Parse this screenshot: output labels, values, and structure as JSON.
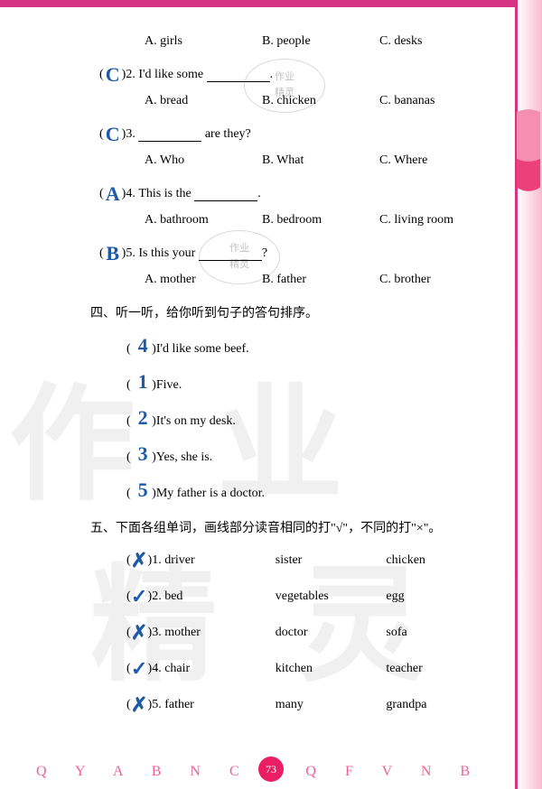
{
  "colors": {
    "accent": "#d63384",
    "handwriting": "#1e5aa8",
    "watermark": "rgba(0,0,0,0.06)",
    "background": "#ffffff"
  },
  "typography": {
    "body_fontsize": 14,
    "handwrite_fontsize": 22,
    "section_fontsize": 14
  },
  "q1_options": {
    "a": "A. girls",
    "b": "B. people",
    "c": "C. desks"
  },
  "q2": {
    "answer": "C",
    "num": ")2.",
    "text_before": "I'd like some ",
    "text_after": ".",
    "options": {
      "a": "A. bread",
      "b": "B. chicken",
      "c": "C. bananas"
    }
  },
  "q3": {
    "answer": "C",
    "num": ")3.",
    "text_after": " are they?",
    "options": {
      "a": "A. Who",
      "b": "B. What",
      "c": "C. Where"
    }
  },
  "q4": {
    "answer": "A",
    "num": ")4.",
    "text_before": "This is the ",
    "text_after": ".",
    "options": {
      "a": "A. bathroom",
      "b": "B. bedroom",
      "c": "C. living room"
    }
  },
  "q5": {
    "answer": "B",
    "num": ")5.",
    "text_before": "Is this your ",
    "text_after": "?",
    "options": {
      "a": "A. mother",
      "b": "B. father",
      "c": "C. brother"
    }
  },
  "section4": {
    "header": "四、听一听，给你听到句子的答句排序。",
    "items": [
      {
        "answer": "4",
        "text": ")I'd like some beef."
      },
      {
        "answer": "1",
        "text": ")Five."
      },
      {
        "answer": "2",
        "text": ")It's on my desk."
      },
      {
        "answer": "3",
        "text": ")Yes, she is."
      },
      {
        "answer": "5",
        "text": ")My father is a doctor."
      }
    ]
  },
  "section5": {
    "header": "五、下面各组单词，画线部分读音相同的打\"√\"，不同的打\"×\"。",
    "items": [
      {
        "answer": "✗",
        "num": ")1.",
        "w1": "driver",
        "w2": "sister",
        "w3": "chicken"
      },
      {
        "answer": "✓",
        "num": ")2.",
        "w1": "bed",
        "w2": "vegetables",
        "w3": "egg"
      },
      {
        "answer": "✗",
        "num": ")3.",
        "w1": "mother",
        "w2": "doctor",
        "w3": "sofa"
      },
      {
        "answer": "✓",
        "num": ")4.",
        "w1": "chair",
        "w2": "kitchen",
        "w3": "teacher"
      },
      {
        "answer": "✗",
        "num": ")5.",
        "w1": "father",
        "w2": "many",
        "w3": "grandpa"
      }
    ]
  },
  "stamp": {
    "line1": "作业",
    "line2": "精灵"
  },
  "page_number": "73",
  "bottom_letters": "Q Y A B N C A Q F V N B",
  "watermark_chars": [
    "作",
    "业",
    "精",
    "灵"
  ]
}
